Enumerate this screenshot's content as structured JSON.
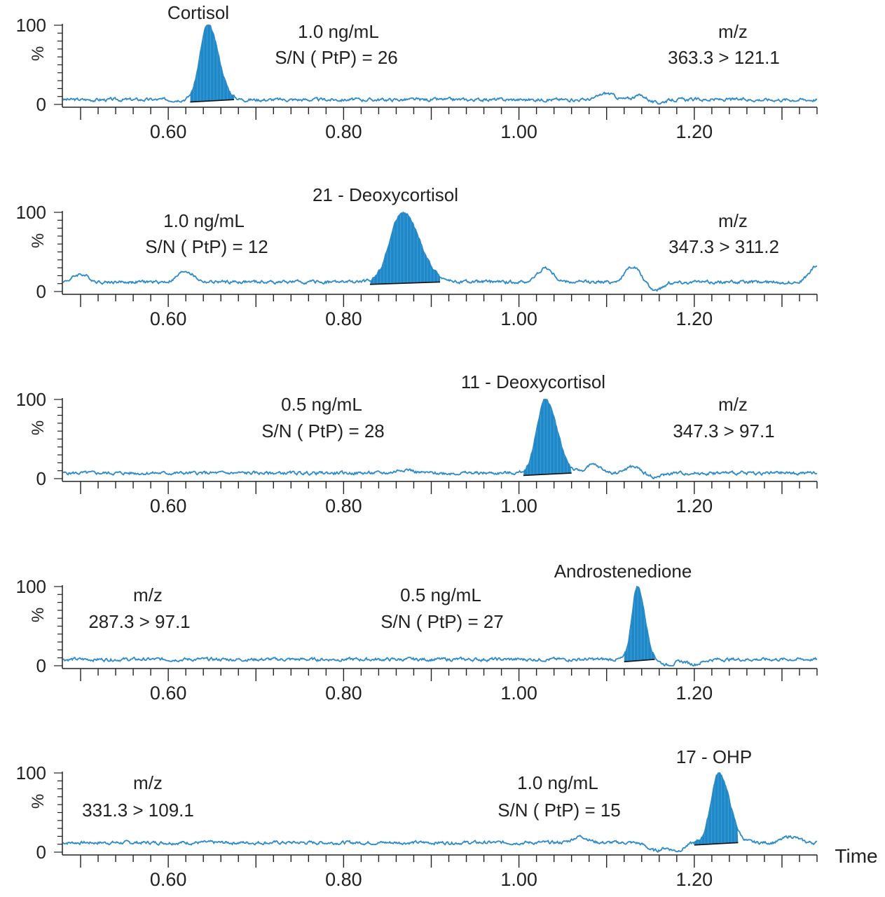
{
  "chart_data": [
    {
      "type": "line",
      "compound": "Cortisol",
      "concentration": "1.0  ng/mL",
      "sn": "S/N (  PtP) = 26",
      "mz_label": "m/z",
      "mz": "363.3 > 121.1",
      "ylabel": "%",
      "y_ticks": [
        "100",
        "0"
      ],
      "ylim": [
        0,
        100
      ],
      "xlim": [
        0.48,
        1.34
      ],
      "x_ticks": [
        "0.60",
        "0.80",
        "1.00",
        "1.20"
      ],
      "peak": {
        "rt": 0.645,
        "height": 100,
        "start": 0.625,
        "end": 0.675
      },
      "baseline": 6,
      "bumps": [
        {
          "x": 1.1,
          "y": 8
        },
        {
          "x": 1.14,
          "y": 6
        },
        {
          "x": 1.155,
          "y": -5
        }
      ],
      "series": [
        {
          "x": [
            0.48,
            0.55,
            0.62,
            0.64,
            0.645,
            0.65,
            0.67,
            0.7,
            0.8,
            0.9,
            1.0,
            1.1,
            1.14,
            1.155,
            1.2,
            1.34
          ],
          "y": [
            8,
            7,
            6,
            60,
            100,
            80,
            10,
            6,
            5,
            5,
            6,
            14,
            12,
            1,
            12,
            15
          ]
        }
      ]
    },
    {
      "type": "line",
      "compound": "21 - Deoxycortisol",
      "concentration": "1.0 ng/mL",
      "sn": "S/N (  PtP) = 12",
      "mz_label": "m/z",
      "mz": "347.3 > 311.2",
      "ylabel": "%",
      "y_ticks": [
        "100",
        "0"
      ],
      "ylim": [
        0,
        100
      ],
      "xlim": [
        0.48,
        1.34
      ],
      "x_ticks": [
        "0.60",
        "0.80",
        "1.00",
        "1.20"
      ],
      "peak": {
        "rt": 0.867,
        "height": 100,
        "start": 0.83,
        "end": 0.91
      },
      "baseline": 12,
      "bumps": [
        {
          "x": 0.5,
          "y": 10
        },
        {
          "x": 0.62,
          "y": 14
        },
        {
          "x": 1.03,
          "y": 18
        },
        {
          "x": 1.13,
          "y": 20
        },
        {
          "x": 1.155,
          "y": -10
        },
        {
          "x": 1.34,
          "y": 20
        }
      ],
      "series": [
        {
          "x": [
            0.48,
            0.5,
            0.56,
            0.62,
            0.7,
            0.8,
            0.86,
            0.867,
            0.88,
            0.92,
            1.0,
            1.02,
            1.1,
            1.13,
            1.15,
            1.2,
            1.34
          ],
          "y": [
            14,
            22,
            20,
            26,
            12,
            10,
            70,
            100,
            80,
            10,
            8,
            30,
            28,
            32,
            2,
            16,
            34
          ]
        }
      ]
    },
    {
      "type": "line",
      "compound": "11 - Deoxycortisol",
      "concentration": "0.5 ng/mL",
      "sn": "S/N (  PtP) = 28",
      "mz_label": "m/z",
      "mz": "347.3 > 97.1",
      "ylabel": "%",
      "y_ticks": [
        "100",
        "0"
      ],
      "ylim": [
        0,
        100
      ],
      "xlim": [
        0.48,
        1.34
      ],
      "x_ticks": [
        "0.60",
        "0.80",
        "1.00",
        "1.20"
      ],
      "peak": {
        "rt": 1.03,
        "height": 100,
        "start": 1.005,
        "end": 1.06
      },
      "baseline": 7,
      "bumps": [
        {
          "x": 0.87,
          "y": 5
        },
        {
          "x": 1.085,
          "y": 10
        },
        {
          "x": 1.13,
          "y": 8
        },
        {
          "x": 1.155,
          "y": -5
        }
      ],
      "series": [
        {
          "x": [
            0.48,
            0.6,
            0.8,
            0.87,
            0.95,
            1.0,
            1.03,
            1.06,
            1.08,
            1.13,
            1.155,
            1.25,
            1.34
          ],
          "y": [
            10,
            9,
            7,
            12,
            4,
            6,
            100,
            8,
            14,
            15,
            1,
            10,
            6
          ]
        }
      ]
    },
    {
      "type": "line",
      "compound": "Androstenedione",
      "concentration": "0.5 ng/mL",
      "sn": "S/N (  PtP) = 27",
      "mz_label": "m/z",
      "mz": "287.3 > 97.1",
      "ylabel": "%",
      "y_ticks": [
        "100",
        "0"
      ],
      "ylim": [
        0,
        100
      ],
      "xlim": [
        0.48,
        1.34
      ],
      "x_ticks": [
        "0.60",
        "0.80",
        "1.00",
        "1.20"
      ],
      "peak": {
        "rt": 1.135,
        "height": 100,
        "start": 1.12,
        "end": 1.155
      },
      "baseline": 8,
      "bumps": [
        {
          "x": 1.17,
          "y": -7
        },
        {
          "x": 1.2,
          "y": -6
        }
      ],
      "series": [
        {
          "x": [
            0.48,
            0.6,
            0.8,
            1.0,
            1.11,
            1.135,
            1.155,
            1.2,
            1.28,
            1.34
          ],
          "y": [
            12,
            10,
            7,
            8,
            10,
            100,
            2,
            2,
            9,
            8
          ]
        }
      ]
    },
    {
      "type": "line",
      "compound": "17 - OHP",
      "concentration": "1.0 ng/mL",
      "sn": "S/N (  PtP) = 15",
      "mz_label": "m/z",
      "mz": "331.3 > 109.1",
      "ylabel": "%",
      "y_ticks": [
        "100",
        "0"
      ],
      "ylim": [
        0,
        100
      ],
      "xlim": [
        0.48,
        1.34
      ],
      "x_ticks": [
        "0.60",
        "0.80",
        "1.00",
        "1.20"
      ],
      "xlabel": "Time",
      "peak": {
        "rt": 1.228,
        "height": 100,
        "start": 1.2,
        "end": 1.25
      },
      "baseline": 12,
      "bumps": [
        {
          "x": 1.07,
          "y": 8
        },
        {
          "x": 1.155,
          "y": -10
        },
        {
          "x": 1.18,
          "y": -10
        },
        {
          "x": 1.31,
          "y": 8
        }
      ],
      "series": [
        {
          "x": [
            0.48,
            0.6,
            0.8,
            1.0,
            1.07,
            1.13,
            1.155,
            1.19,
            1.228,
            1.25,
            1.31,
            1.34
          ],
          "y": [
            14,
            12,
            10,
            12,
            22,
            12,
            0,
            2,
            100,
            10,
            20,
            14
          ]
        }
      ]
    }
  ],
  "colors": {
    "trace": "#2b8ac9",
    "fill": "#1f88c8",
    "fill_line": "#5fb3e0",
    "axis": "#222222",
    "baseline_line": "#111111"
  }
}
